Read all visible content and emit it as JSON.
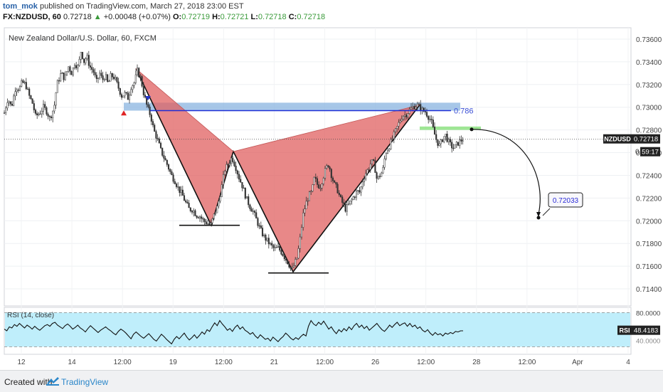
{
  "header": {
    "author": "tom_mok",
    "published": "published on TradingView.com, March 27, 2018 23:00 EST",
    "symbol": "FX:NZDUSD, 60",
    "last": "0.72718",
    "change": "+0.00048 (+0.07%)",
    "open_label": "O:",
    "open": "0.72719",
    "high_label": "H:",
    "high": "0.72721",
    "low_label": "L:",
    "low": "0.72718",
    "close_label": "C:",
    "close": "0.72718"
  },
  "footer": {
    "created_with": "Created with",
    "brand": "TradingView"
  },
  "chart_data": {
    "type": "candlestick",
    "title": "New Zealand Dollar/U.S. Dollar, 60, FXCM",
    "ylim": [
      0.7125,
      0.737
    ],
    "y_ticks": [
      "0.73600",
      "0.73400",
      "0.73200",
      "0.73000",
      "0.72800",
      "0.72600",
      "0.72400",
      "0.72200",
      "0.72000",
      "0.71800",
      "0.71600",
      "0.71400"
    ],
    "x_ticks": [
      "12",
      "14",
      "12:00",
      "19",
      "12:00",
      "21",
      "12:00",
      "26",
      "12:00",
      "28",
      "12:00",
      "Apr",
      "4"
    ],
    "last_price_label": "NZDUSD",
    "last_price": "0.72718",
    "countdown": "59:17",
    "countdown_prefix": "0",
    "price_path": [
      [
        0,
        0.7295
      ],
      [
        5,
        0.7308
      ],
      [
        10,
        0.73
      ],
      [
        16,
        0.7318
      ],
      [
        21,
        0.7316
      ],
      [
        25,
        0.7322
      ],
      [
        30,
        0.732
      ],
      [
        35,
        0.731
      ],
      [
        40,
        0.7303
      ],
      [
        44,
        0.7292
      ],
      [
        50,
        0.7295
      ],
      [
        55,
        0.73
      ],
      [
        60,
        0.7296
      ],
      [
        64,
        0.729
      ],
      [
        70,
        0.73
      ],
      [
        74,
        0.732
      ],
      [
        80,
        0.733
      ],
      [
        85,
        0.7325
      ],
      [
        90,
        0.7336
      ],
      [
        95,
        0.733
      ],
      [
        99,
        0.7339
      ],
      [
        104,
        0.7335
      ],
      [
        108,
        0.735
      ],
      [
        112,
        0.734
      ],
      [
        116,
        0.7345
      ],
      [
        120,
        0.7336
      ],
      [
        125,
        0.7332
      ],
      [
        130,
        0.7322
      ],
      [
        134,
        0.733
      ],
      [
        138,
        0.7324
      ],
      [
        142,
        0.7328
      ],
      [
        146,
        0.732
      ],
      [
        150,
        0.7328
      ],
      [
        155,
        0.7326
      ],
      [
        160,
        0.7318
      ],
      [
        165,
        0.731
      ],
      [
        170,
        0.7312
      ],
      [
        174,
        0.7308
      ],
      [
        178,
        0.7318
      ],
      [
        183,
        0.7322
      ],
      [
        187,
        0.7332
      ],
      [
        192,
        0.7325
      ],
      [
        196,
        0.7312
      ],
      [
        201,
        0.73
      ],
      [
        206,
        0.7292
      ],
      [
        210,
        0.728
      ],
      [
        215,
        0.7272
      ],
      [
        220,
        0.7262
      ],
      [
        225,
        0.7255
      ],
      [
        230,
        0.7248
      ],
      [
        235,
        0.724
      ],
      [
        240,
        0.7235
      ],
      [
        245,
        0.7228
      ],
      [
        250,
        0.7223
      ],
      [
        255,
        0.7216
      ],
      [
        260,
        0.721
      ],
      [
        265,
        0.721
      ],
      [
        270,
        0.7205
      ],
      [
        275,
        0.7204
      ],
      [
        280,
        0.72
      ],
      [
        285,
        0.7198
      ],
      [
        290,
        0.7196
      ],
      [
        295,
        0.7205
      ],
      [
        300,
        0.7213
      ],
      [
        305,
        0.7228
      ],
      [
        310,
        0.7245
      ],
      [
        315,
        0.725
      ],
      [
        320,
        0.7256
      ],
      [
        325,
        0.7248
      ],
      [
        330,
        0.7238
      ],
      [
        335,
        0.723
      ],
      [
        340,
        0.722
      ],
      [
        345,
        0.7213
      ],
      [
        350,
        0.7208
      ],
      [
        355,
        0.72
      ],
      [
        360,
        0.7192
      ],
      [
        365,
        0.7186
      ],
      [
        370,
        0.7182
      ],
      [
        375,
        0.7178
      ],
      [
        380,
        0.7175
      ],
      [
        385,
        0.7176
      ],
      [
        390,
        0.7172
      ],
      [
        395,
        0.7167
      ],
      [
        400,
        0.7162
      ],
      [
        404,
        0.7156
      ],
      [
        408,
        0.7162
      ],
      [
        412,
        0.7168
      ],
      [
        416,
        0.7185
      ],
      [
        420,
        0.7205
      ],
      [
        424,
        0.7215
      ],
      [
        428,
        0.7222
      ],
      [
        432,
        0.7225
      ],
      [
        436,
        0.7238
      ],
      [
        440,
        0.7232
      ],
      [
        444,
        0.723
      ],
      [
        448,
        0.7238
      ],
      [
        452,
        0.7246
      ],
      [
        456,
        0.725
      ],
      [
        460,
        0.724
      ],
      [
        464,
        0.7232
      ],
      [
        468,
        0.7228
      ],
      [
        472,
        0.722
      ],
      [
        476,
        0.7215
      ],
      [
        480,
        0.721
      ],
      [
        484,
        0.7214
      ],
      [
        488,
        0.7218
      ],
      [
        492,
        0.7222
      ],
      [
        496,
        0.7226
      ],
      [
        500,
        0.7225
      ],
      [
        504,
        0.7236
      ],
      [
        508,
        0.7242
      ],
      [
        512,
        0.7246
      ],
      [
        516,
        0.7252
      ],
      [
        520,
        0.725
      ],
      [
        524,
        0.7236
      ],
      [
        528,
        0.724
      ],
      [
        532,
        0.7244
      ],
      [
        536,
        0.726
      ],
      [
        540,
        0.7264
      ],
      [
        544,
        0.727
      ],
      [
        548,
        0.7276
      ],
      [
        552,
        0.7282
      ],
      [
        556,
        0.7288
      ],
      [
        560,
        0.7293
      ],
      [
        564,
        0.7293
      ],
      [
        568,
        0.7296
      ],
      [
        572,
        0.7299
      ],
      [
        576,
        0.7301
      ],
      [
        580,
        0.7302
      ],
      [
        584,
        0.73
      ],
      [
        588,
        0.7297
      ],
      [
        592,
        0.7296
      ],
      [
        596,
        0.7292
      ],
      [
        600,
        0.7288
      ],
      [
        604,
        0.7278
      ],
      [
        608,
        0.727
      ],
      [
        612,
        0.7266
      ],
      [
        616,
        0.7272
      ],
      [
        620,
        0.7276
      ],
      [
        624,
        0.727
      ],
      [
        628,
        0.7266
      ],
      [
        632,
        0.7264
      ],
      [
        636,
        0.7267
      ],
      [
        640,
        0.727
      ],
      [
        645,
        0.7272
      ]
    ],
    "pattern": {
      "points": [
        [
          185,
          0.7334
        ],
        [
          291,
          0.7196
        ],
        [
          322,
          0.7261
        ],
        [
          406,
          0.7155
        ],
        [
          584,
          0.7302
        ]
      ],
      "fill": "#e06060"
    },
    "zones": [
      {
        "name": "blue-zone",
        "x1": 168,
        "x2": 641,
        "y1": 0.7304,
        "y2": 0.7297,
        "color": "#8ab4e0"
      },
      {
        "name": "green-zone",
        "x1": 584,
        "x2": 670,
        "y1": 0.7283,
        "y2": 0.728,
        "color": "#7ddd70"
      }
    ],
    "fib_level": {
      "price": 0.7297,
      "x1": 205,
      "x2": 628,
      "label": "0.786"
    },
    "support_lines": [
      {
        "price": 0.7196,
        "x1": 246,
        "x2": 331
      },
      {
        "price": 0.7154,
        "x1": 371,
        "x2": 456
      }
    ],
    "target": {
      "label": "0.72033",
      "price": 0.72033
    },
    "projection_from": [
      657,
      0.72805
    ],
    "projection_to": [
      751,
      0.72033
    ],
    "rsi": {
      "label": "RSI (14, close)",
      "value": "48.4183",
      "upper": 80,
      "lower": 20,
      "ticks": [
        "80.0000",
        "40.0000"
      ],
      "fill": "#bfeefb",
      "values": [
        51,
        48,
        55,
        53,
        59,
        56,
        61,
        57,
        53,
        58,
        55,
        51,
        56,
        52,
        49,
        53,
        57,
        59,
        56,
        61,
        63,
        58,
        55,
        52,
        57,
        60,
        56,
        51,
        54,
        58,
        53,
        50,
        46,
        52,
        57,
        53,
        49,
        45,
        49,
        52,
        55,
        51,
        48,
        44,
        41,
        47,
        51,
        48,
        44,
        39,
        34,
        42,
        46,
        42,
        38,
        35,
        39,
        43,
        38,
        33,
        30,
        36,
        42,
        38,
        33,
        29,
        25,
        33,
        38,
        34,
        39,
        44,
        37,
        32,
        36,
        41,
        35,
        40,
        46,
        42,
        50,
        47,
        55,
        62,
        57,
        66,
        60,
        55,
        49,
        52,
        47,
        54,
        58,
        51,
        55,
        49,
        46,
        42,
        45,
        39,
        35,
        41,
        37,
        33,
        35,
        30,
        37,
        33,
        29,
        34,
        38,
        44,
        40,
        35,
        32,
        36,
        33,
        38,
        42,
        39,
        56,
        66,
        60,
        57,
        63,
        59,
        65,
        58,
        51,
        55,
        48,
        43,
        50,
        46,
        52,
        48,
        55,
        50,
        57,
        61,
        54,
        58,
        52,
        56,
        49,
        53,
        57,
        61,
        55,
        50,
        47,
        52,
        58,
        54,
        59,
        63,
        57,
        60,
        62,
        56,
        61,
        55,
        58,
        52,
        55,
        49,
        46,
        50,
        44,
        40,
        45,
        41,
        43,
        39,
        44,
        42,
        45,
        43,
        47,
        46,
        48,
        48
      ]
    }
  }
}
